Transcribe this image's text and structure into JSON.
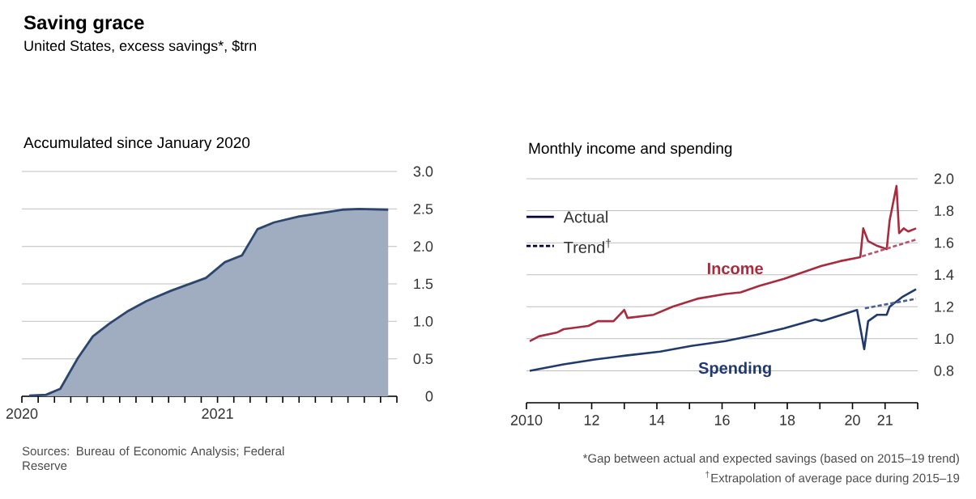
{
  "chart_data": [
    {
      "type": "area",
      "title": "Saving grace",
      "subtitle": "United States, excess savings*, $trn",
      "annotations": [
        "Accumulated since January 2020",
        "Sources: Bureau of Economic Analysis; Federal Reserve"
      ],
      "x": [
        "2020-01-15",
        "2020-02-15",
        "2020-03-12",
        "2020-04-14",
        "2020-05-12",
        "2020-06-12",
        "2020-07-15",
        "2020-08-21",
        "2020-10-06",
        "2020-12-10",
        "2021-01-15",
        "2021-02-15",
        "2021-03-15",
        "2021-04-15",
        "2021-06-01",
        "2021-07-25",
        "2021-08-21",
        "2021-09-21",
        "2021-11-15"
      ],
      "values": [
        0.01,
        0.02,
        0.1,
        0.51,
        0.8,
        0.97,
        1.13,
        1.27,
        1.41,
        1.58,
        1.79,
        1.88,
        2.23,
        2.32,
        2.4,
        2.46,
        2.49,
        2.5,
        2.49
      ],
      "color": "#2c4670",
      "xlim": [
        "2020-01",
        "2021-12"
      ],
      "xticks": [
        {
          "value": "2020-01",
          "label": "2020"
        },
        {
          "value": "2020-02",
          "label": null
        },
        {
          "value": "2020-03",
          "label": null
        },
        {
          "value": "2020-04",
          "label": null
        },
        {
          "value": "2020-05",
          "label": null
        },
        {
          "value": "2020-06",
          "label": null
        },
        {
          "value": "2020-07",
          "label": null
        },
        {
          "value": "2020-08",
          "label": null
        },
        {
          "value": "2020-09",
          "label": null
        },
        {
          "value": "2020-10",
          "label": null
        },
        {
          "value": "2020-11",
          "label": null
        },
        {
          "value": "2020-12",
          "label": null
        },
        {
          "value": "2021-01",
          "label": "2021"
        },
        {
          "value": "2021-02",
          "label": null
        },
        {
          "value": "2021-03",
          "label": null
        },
        {
          "value": "2021-04",
          "label": null
        },
        {
          "value": "2021-05",
          "label": null
        },
        {
          "value": "2021-06",
          "label": null
        },
        {
          "value": "2021-07",
          "label": null
        },
        {
          "value": "2021-08",
          "label": null
        },
        {
          "value": "2021-09",
          "label": null
        },
        {
          "value": "2021-10",
          "label": null
        },
        {
          "value": "2021-11",
          "label": null
        },
        {
          "value": "2021-12",
          "label": null
        }
      ],
      "ylim": [
        0,
        3.0
      ],
      "yticks": [
        0,
        0.5,
        {
          "value": 1.0,
          "label": "1.0"
        },
        1.5,
        {
          "value": 2.0,
          "label": "2.0"
        },
        2.5,
        {
          "value": 3.0,
          "label": "3.0"
        }
      ],
      "grid": "y"
    },
    {
      "type": "line",
      "title": "Monthly income and spending",
      "annotations": [
        "Actual",
        "Trend$^{†}$",
        "*Gap between actual and expected savings (based on 2015–19 trend)",
        "$^{†}$Extrapolation of average pace during 2015–19"
      ],
      "series": [
        {
          "name": "Income",
          "color": "#a82b3e",
          "line_style": "solid",
          "x": [
            2010.1,
            2010.38,
            2010.95,
            2011.14,
            2011.9,
            2012.19,
            2012.67,
            2013.0,
            2013.1,
            2013.9,
            2014.48,
            2015.24,
            2016.1,
            2016.57,
            2017.14,
            2017.9,
            2019.05,
            2019.62,
            2020.24,
            2020.33,
            2020.48,
            2020.76,
            2021.05,
            2021.14,
            2021.35,
            2021.43,
            2021.57,
            2021.71,
            2021.95
          ],
          "values": [
            0.985,
            1.015,
            1.04,
            1.06,
            1.08,
            1.11,
            1.11,
            1.18,
            1.13,
            1.15,
            1.2,
            1.25,
            1.28,
            1.29,
            1.33,
            1.375,
            1.455,
            1.485,
            1.51,
            1.69,
            1.61,
            1.58,
            1.56,
            1.74,
            1.955,
            1.66,
            1.69,
            1.67,
            1.69
          ]
        },
        {
          "name": "Spending",
          "color": "#213a6e",
          "line_style": "solid",
          "x": [
            2010.1,
            2011.14,
            2012.1,
            2013.05,
            2014.1,
            2015.05,
            2016.1,
            2017.05,
            2017.9,
            2018.86,
            2019.05,
            2020.14,
            2020.36,
            2020.48,
            2020.76,
            2021.05,
            2021.14,
            2021.52,
            2021.95
          ],
          "values": [
            0.8,
            0.84,
            0.87,
            0.895,
            0.92,
            0.955,
            0.985,
            1.025,
            1.065,
            1.12,
            1.11,
            1.18,
            0.935,
            1.11,
            1.15,
            1.15,
            1.2,
            1.26,
            1.31
          ]
        },
        {
          "color": "#b5566a",
          "line_style": "dashed",
          "x": [
            2020.29,
            2021.95
          ],
          "values": [
            1.515,
            1.62
          ]
        },
        {
          "color": "#4a5f8e",
          "line_style": "dashed",
          "x": [
            2020.38,
            2021.95
          ],
          "values": [
            1.19,
            1.25
          ]
        }
      ],
      "xlim": [
        2010,
        2022
      ],
      "xticks": [
        {
          "value": 2010,
          "label": "2010"
        },
        {
          "value": 2011,
          "label": null
        },
        {
          "value": 2012,
          "label": "12"
        },
        {
          "value": 2013,
          "label": null
        },
        {
          "value": 2014,
          "label": "14"
        },
        {
          "value": 2015,
          "label": null
        },
        {
          "value": 2016,
          "label": "16"
        },
        {
          "value": 2017,
          "label": null
        },
        {
          "value": 2018,
          "label": "18"
        },
        {
          "value": 2019,
          "label": null
        },
        {
          "value": 2020,
          "label": "20"
        },
        {
          "value": 2021,
          "label": "21"
        },
        {
          "value": 2022,
          "label": null
        }
      ],
      "ylim": [
        0.6,
        2.0
      ],
      "yticks": [
        0.8,
        {
          "value": 1.0,
          "label": "1.0"
        },
        1.2,
        1.4,
        1.6,
        1.8,
        {
          "value": 2.0,
          "label": "2.0"
        }
      ],
      "grid": "y"
    }
  ]
}
